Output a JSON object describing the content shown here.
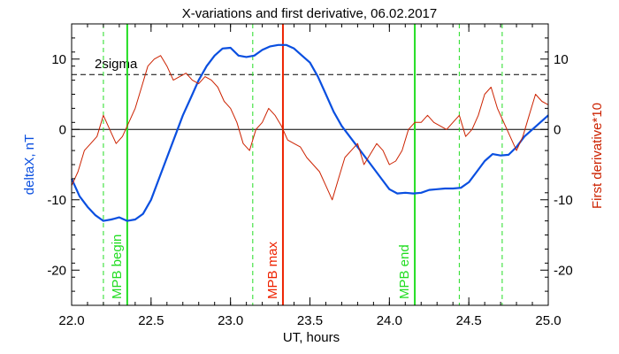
{
  "chart_data": {
    "type": "line",
    "title": "X-variations and first derivative, 06.02.2017",
    "xlabel": "UT, hours",
    "ylabel_left": "deltaX, nT",
    "ylabel_right": "First derivative*10",
    "xlim": [
      22.0,
      25.0
    ],
    "ylim": [
      -25,
      15
    ],
    "xticks": [
      "22.0",
      "22.5",
      "23.0",
      "23.5",
      "24.0",
      "24.5",
      "25.0"
    ],
    "xtick_values": [
      22.0,
      22.5,
      23.0,
      23.5,
      24.0,
      24.5,
      25.0
    ],
    "yticks": [
      "-20",
      "-10",
      "0",
      "10"
    ],
    "ytick_values": [
      -20,
      -10,
      0,
      10
    ],
    "colors": {
      "deltaX": "#0a4fe0",
      "derivative": "#cc2200",
      "mpb_green": "#22dd22",
      "mpb_red": "#ee2200",
      "axis": "#000000"
    },
    "threshold": {
      "label": "2sigma",
      "value": 7.8
    },
    "zero_line": 0,
    "vertical_markers": [
      {
        "label": "MPB begin",
        "x": 22.35,
        "style": "solid",
        "color": "#22dd22"
      },
      {
        "label": "MPB max",
        "x": 23.33,
        "style": "solid",
        "color": "#ee2200"
      },
      {
        "label": "MPB end",
        "x": 24.16,
        "style": "solid",
        "color": "#22dd22"
      },
      {
        "label": "",
        "x": 22.2,
        "style": "dashed",
        "color": "#22dd22"
      },
      {
        "label": "",
        "x": 23.14,
        "style": "dashed",
        "color": "#22dd22"
      },
      {
        "label": "",
        "x": 24.44,
        "style": "dashed",
        "color": "#22dd22"
      },
      {
        "label": "",
        "x": 24.71,
        "style": "dashed",
        "color": "#22dd22"
      }
    ],
    "series": [
      {
        "axis": "left",
        "x": [
          22.0,
          22.05,
          22.1,
          22.15,
          22.2,
          22.25,
          22.3,
          22.35,
          22.4,
          22.45,
          22.5,
          22.55,
          22.6,
          22.65,
          22.7,
          22.75,
          22.8,
          22.85,
          22.9,
          22.95,
          23.0,
          23.05,
          23.1,
          23.15,
          23.2,
          23.25,
          23.3,
          23.35,
          23.4,
          23.45,
          23.5,
          23.55,
          23.6,
          23.65,
          23.7,
          23.75,
          23.8,
          23.85,
          23.9,
          23.95,
          24.0,
          24.05,
          24.1,
          24.15,
          24.2,
          24.25,
          24.3,
          24.35,
          24.4,
          24.45,
          24.5,
          24.55,
          24.6,
          24.65,
          24.7,
          24.75,
          24.8,
          24.85,
          24.9,
          24.95,
          25.0
        ],
        "values": [
          -7,
          -9.5,
          -11,
          -12.2,
          -13,
          -12.8,
          -12.5,
          -13,
          -12.8,
          -12,
          -10,
          -7,
          -4,
          -1,
          2,
          4.5,
          7,
          9,
          10.5,
          11.5,
          11.6,
          10.5,
          10.3,
          10.5,
          11.3,
          11.8,
          12,
          12,
          11.5,
          10.5,
          9.5,
          7.5,
          5,
          2.5,
          0.5,
          -1,
          -2.5,
          -4,
          -5.5,
          -7,
          -8.5,
          -9.1,
          -9,
          -9.1,
          -9,
          -8.6,
          -8.5,
          -8.4,
          -8.4,
          -8.3,
          -7.5,
          -6,
          -4.5,
          -3.5,
          -3.7,
          -3.6,
          -2.5,
          -1,
          0,
          1,
          2
        ]
      },
      {
        "axis": "right",
        "x": [
          22.0,
          22.04,
          22.08,
          22.12,
          22.16,
          22.2,
          22.24,
          22.28,
          22.32,
          22.36,
          22.4,
          22.44,
          22.48,
          22.52,
          22.56,
          22.6,
          22.64,
          22.68,
          22.72,
          22.76,
          22.8,
          22.84,
          22.88,
          22.92,
          22.96,
          23.0,
          23.04,
          23.08,
          23.12,
          23.16,
          23.2,
          23.24,
          23.28,
          23.32,
          23.36,
          23.4,
          23.44,
          23.48,
          23.52,
          23.56,
          23.6,
          23.64,
          23.68,
          23.72,
          23.76,
          23.8,
          23.84,
          23.88,
          23.92,
          23.96,
          24.0,
          24.04,
          24.08,
          24.12,
          24.16,
          24.2,
          24.24,
          24.28,
          24.32,
          24.36,
          24.4,
          24.44,
          24.48,
          24.52,
          24.56,
          24.6,
          24.64,
          24.68,
          24.72,
          24.76,
          24.8,
          24.84,
          24.88,
          24.92,
          24.96,
          25.0
        ],
        "values": [
          -8,
          -6,
          -3,
          -2,
          -1,
          2,
          0,
          -2,
          -1,
          1,
          3,
          6,
          9,
          10,
          10.5,
          9,
          7,
          7.5,
          8,
          7,
          6.5,
          7.5,
          7,
          6,
          4,
          3,
          1,
          -2,
          -3,
          0,
          1,
          3,
          2,
          0.5,
          -1.5,
          -2,
          -2.5,
          -4,
          -5,
          -6,
          -8,
          -10,
          -7,
          -4,
          -3,
          -2,
          -5,
          -3.5,
          -2,
          -3,
          -5,
          -4.5,
          -3,
          0,
          1,
          1,
          2,
          1,
          0.5,
          0,
          1,
          2,
          -1,
          0,
          2,
          5,
          6,
          3,
          1,
          -1,
          -3,
          -1,
          2,
          5,
          4,
          3.5
        ]
      }
    ]
  }
}
